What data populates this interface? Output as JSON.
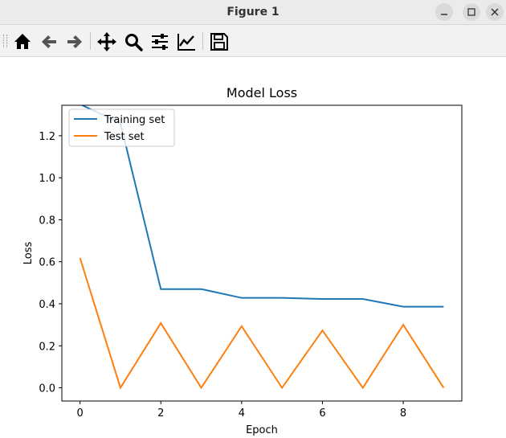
{
  "window": {
    "title": "Figure 1"
  },
  "toolbar": {
    "buttons": [
      {
        "name": "home-button",
        "icon": "home-icon"
      },
      {
        "name": "back-button",
        "icon": "arrow-left-icon"
      },
      {
        "name": "forward-button",
        "icon": "arrow-right-icon"
      },
      {
        "name": "pan-button",
        "icon": "move-icon"
      },
      {
        "name": "zoom-button",
        "icon": "magnifier-icon"
      },
      {
        "name": "configure-subplots-button",
        "icon": "sliders-icon"
      },
      {
        "name": "edit-axis-button",
        "icon": "line-chart-icon"
      },
      {
        "name": "save-button",
        "icon": "floppy-disk-icon"
      }
    ]
  },
  "chart_data": {
    "type": "line",
    "title": "Model Loss",
    "xlabel": "Epoch",
    "ylabel": "Loss",
    "xlim": [
      -0.45,
      9.45
    ],
    "ylim": [
      -0.063,
      1.345
    ],
    "xticks": [
      0,
      2,
      4,
      6,
      8
    ],
    "xtick_labels": [
      "0",
      "2",
      "4",
      "6",
      "8"
    ],
    "yticks": [
      0.0,
      0.2,
      0.4,
      0.6,
      0.8,
      1.0,
      1.2
    ],
    "ytick_labels": [
      "0.0",
      "0.2",
      "0.4",
      "0.6",
      "0.8",
      "1.0",
      "1.2"
    ],
    "grid": false,
    "legend_position": "top-left",
    "x": [
      0,
      1,
      2,
      3,
      4,
      5,
      6,
      7,
      8,
      9
    ],
    "series": [
      {
        "name": "Training set",
        "color": "#1f77b4",
        "values": [
          1.35,
          1.26,
          0.47,
          0.47,
          0.428,
          0.428,
          0.423,
          0.423,
          0.386,
          0.386
        ]
      },
      {
        "name": "Test set",
        "color": "#ff7f0e",
        "values": [
          0.618,
          0.0,
          0.308,
          0.0,
          0.293,
          0.0,
          0.273,
          0.0,
          0.3,
          0.0
        ]
      }
    ]
  }
}
